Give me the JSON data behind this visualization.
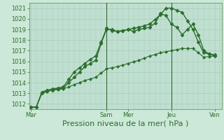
{
  "title": "",
  "xlabel": "Pression niveau de la mer( hPa )",
  "bg_color": "#cce8d8",
  "plot_bg_color": "#bfe0d0",
  "grid_color": "#aaccbb",
  "line_color": "#2d6e2d",
  "marker_color": "#2d6e2d",
  "ylim": [
    1011.5,
    1021.5
  ],
  "yticks": [
    1012,
    1013,
    1014,
    1015,
    1016,
    1017,
    1018,
    1019,
    1020,
    1021
  ],
  "series": [
    {
      "x": [
        0,
        3,
        6,
        9,
        12,
        15,
        18,
        21,
        24,
        27,
        30,
        33,
        36,
        39,
        42,
        45,
        48,
        51,
        54,
        57,
        60,
        63,
        66,
        69,
        72,
        75,
        78,
        81,
        84,
        87,
        90,
        93,
        96,
        99,
        102
      ],
      "y": [
        1011.7,
        1011.7,
        1013.0,
        1013.2,
        1013.3,
        1013.4,
        1013.5,
        1014.0,
        1014.5,
        1015.0,
        1015.5,
        1015.8,
        1016.1,
        1017.7,
        1019.0,
        1019.0,
        1018.8,
        1018.85,
        1019.0,
        1018.8,
        1019.0,
        1019.1,
        1019.2,
        1019.6,
        1020.5,
        1020.3,
        1019.5,
        1019.2,
        1018.5,
        1019.0,
        1019.5,
        1018.5,
        1017.0,
        1016.7,
        1016.5
      ],
      "marker": "D",
      "markersize": 2.5,
      "linewidth": 1.0
    },
    {
      "x": [
        0,
        3,
        6,
        9,
        12,
        15,
        18,
        21,
        24,
        27,
        30,
        33,
        36,
        39,
        42,
        45,
        48,
        51,
        54,
        57,
        60,
        63,
        66,
        69,
        72,
        75,
        78,
        81,
        84,
        87,
        90,
        93,
        96,
        99,
        102
      ],
      "y": [
        1011.7,
        1011.7,
        1013.1,
        1013.3,
        1013.4,
        1013.5,
        1013.6,
        1014.3,
        1015.0,
        1015.4,
        1015.8,
        1016.2,
        1016.5,
        1017.8,
        1019.1,
        1018.9,
        1018.8,
        1018.9,
        1019.0,
        1019.1,
        1019.2,
        1019.35,
        1019.5,
        1019.95,
        1020.4,
        1021.0,
        1021.0,
        1020.8,
        1020.6,
        1019.8,
        1019.0,
        1017.8,
        1016.8,
        1016.7,
        1016.6
      ],
      "marker": "D",
      "markersize": 2.5,
      "linewidth": 1.0
    },
    {
      "x": [
        0,
        3,
        6,
        9,
        12,
        15,
        18,
        21,
        24,
        27,
        30,
        33,
        36,
        39,
        42,
        45,
        48,
        51,
        54,
        57,
        60,
        63,
        66,
        69,
        72,
        75,
        78,
        81,
        84,
        87,
        90,
        93,
        96,
        99,
        102
      ],
      "y": [
        1011.7,
        1011.7,
        1013.0,
        1013.15,
        1013.3,
        1013.35,
        1013.4,
        1013.6,
        1013.8,
        1014.0,
        1014.2,
        1014.35,
        1014.5,
        1014.9,
        1015.3,
        1015.4,
        1015.5,
        1015.65,
        1015.8,
        1015.95,
        1016.1,
        1016.3,
        1016.5,
        1016.65,
        1016.8,
        1016.9,
        1017.0,
        1017.1,
        1017.2,
        1017.2,
        1017.2,
        1016.8,
        1016.4,
        1016.45,
        1016.5
      ],
      "marker": "D",
      "markersize": 2.0,
      "linewidth": 0.8
    }
  ],
  "vline_positions": [
    42,
    78
  ],
  "vline_color": "#336633",
  "xlabel_fontsize": 8,
  "tick_fontsize": 6,
  "tick_color": "#2d6e2d",
  "xtick_positions": [
    0,
    42,
    54,
    78,
    102
  ],
  "xtick_labels": [
    "Mar",
    "Sam",
    "Mer",
    "Jeu",
    "Ven"
  ]
}
